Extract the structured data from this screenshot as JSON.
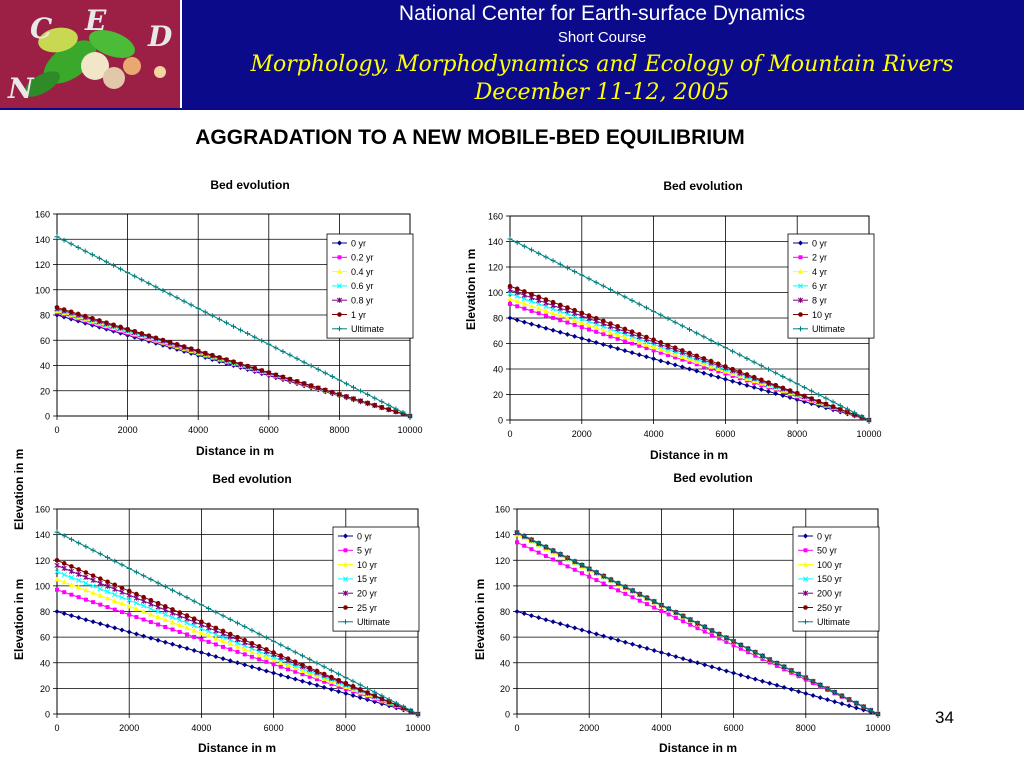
{
  "header": {
    "logo_letters": [
      "C",
      "E",
      "D",
      "N"
    ],
    "organization": "National Center for Earth-surface Dynamics",
    "short_course": "Short Course",
    "course_title": "Morphology, Morphodynamics and Ecology of Mountain Rivers",
    "date": "December 11-12, 2005"
  },
  "slide_title": "AGGRADATION TO A NEW MOBILE-BED EQUILIBRIUM",
  "slide_number": "34",
  "colors": {
    "header_bg": "#0a0a8a",
    "logo_bg": "#9c1f46",
    "course_text": "#ffff00",
    "series": [
      "#00008b",
      "#ff00ff",
      "#ffff00",
      "#00ffff",
      "#800080",
      "#800000",
      "#008080"
    ]
  },
  "chart_data": [
    {
      "type": "line",
      "title": "Bed evolution",
      "xlabel": "Distance in m",
      "ylabel": "Elevation in m",
      "xlim": [
        0,
        10000
      ],
      "ylim": [
        0,
        160
      ],
      "xticks": [
        0,
        2000,
        4000,
        6000,
        8000,
        10000
      ],
      "yticks": [
        0,
        20,
        40,
        60,
        80,
        100,
        120,
        140,
        160
      ],
      "grid": true,
      "legend": "top-right",
      "series": [
        {
          "name": "0 yr",
          "y0": 80,
          "y10000": 0
        },
        {
          "name": "0.2 yr",
          "y0": 82,
          "y10000": 0
        },
        {
          "name": "0.4 yr",
          "y0": 83,
          "y10000": 0
        },
        {
          "name": "0.6 yr",
          "y0": 84,
          "y10000": 0
        },
        {
          "name": "0.8 yr",
          "y0": 85,
          "y10000": 0
        },
        {
          "name": "1 yr",
          "y0": 86,
          "y10000": 0
        },
        {
          "name": "Ultimate",
          "y0": 142,
          "y10000": 0
        }
      ]
    },
    {
      "type": "line",
      "title": "Bed evolution",
      "xlabel": "Distance in m",
      "ylabel": "Elevation in m",
      "xlim": [
        0,
        10000
      ],
      "ylim": [
        0,
        160
      ],
      "xticks": [
        0,
        2000,
        4000,
        6000,
        8000,
        10000
      ],
      "yticks": [
        0,
        20,
        40,
        60,
        80,
        100,
        120,
        140,
        160
      ],
      "grid": true,
      "legend": "top-right",
      "series": [
        {
          "name": "0 yr",
          "y0": 80,
          "y10000": 0
        },
        {
          "name": "2 yr",
          "y0": 91,
          "y10000": 0
        },
        {
          "name": "4 yr",
          "y0": 95,
          "y10000": 0
        },
        {
          "name": "6 yr",
          "y0": 99,
          "y10000": 0
        },
        {
          "name": "8 yr",
          "y0": 102,
          "y10000": 0
        },
        {
          "name": "10 yr",
          "y0": 105,
          "y10000": 0
        },
        {
          "name": "Ultimate",
          "y0": 142,
          "y10000": 0
        }
      ]
    },
    {
      "type": "line",
      "title": "Bed evolution",
      "xlabel": "Distance in m",
      "ylabel": "Elevation in m",
      "xlim": [
        0,
        10000
      ],
      "ylim": [
        0,
        160
      ],
      "xticks": [
        0,
        2000,
        4000,
        6000,
        8000,
        10000
      ],
      "yticks": [
        0,
        20,
        40,
        60,
        80,
        100,
        120,
        140,
        160
      ],
      "grid": true,
      "legend": "top-right",
      "series": [
        {
          "name": "0 yr",
          "y0": 80,
          "y10000": 0
        },
        {
          "name": "5 yr",
          "y0": 97,
          "y10000": 0
        },
        {
          "name": "10 yr",
          "y0": 105,
          "y10000": 0
        },
        {
          "name": "15 yr",
          "y0": 111,
          "y10000": 0
        },
        {
          "name": "20 yr",
          "y0": 116,
          "y10000": 0
        },
        {
          "name": "25 yr",
          "y0": 120,
          "y10000": 0
        },
        {
          "name": "Ultimate",
          "y0": 142,
          "y10000": 0
        }
      ]
    },
    {
      "type": "line",
      "title": "Bed evolution",
      "xlabel": "Distance in m",
      "ylabel": "Elevation in m",
      "xlim": [
        0,
        10000
      ],
      "ylim": [
        0,
        160
      ],
      "xticks": [
        0,
        2000,
        4000,
        6000,
        8000,
        10000
      ],
      "yticks": [
        0,
        20,
        40,
        60,
        80,
        100,
        120,
        140,
        160
      ],
      "grid": true,
      "legend": "top-right",
      "series": [
        {
          "name": "0 yr",
          "y0": 80,
          "y10000": 0
        },
        {
          "name": "50 yr",
          "y0": 134,
          "y10000": 0
        },
        {
          "name": "100 yr",
          "y0": 140,
          "y10000": 0
        },
        {
          "name": "150 yr",
          "y0": 141,
          "y10000": 0
        },
        {
          "name": "200 yr",
          "y0": 141.5,
          "y10000": 0
        },
        {
          "name": "250 yr",
          "y0": 141.8,
          "y10000": 0
        },
        {
          "name": "Ultimate",
          "y0": 142,
          "y10000": 0
        }
      ]
    }
  ]
}
